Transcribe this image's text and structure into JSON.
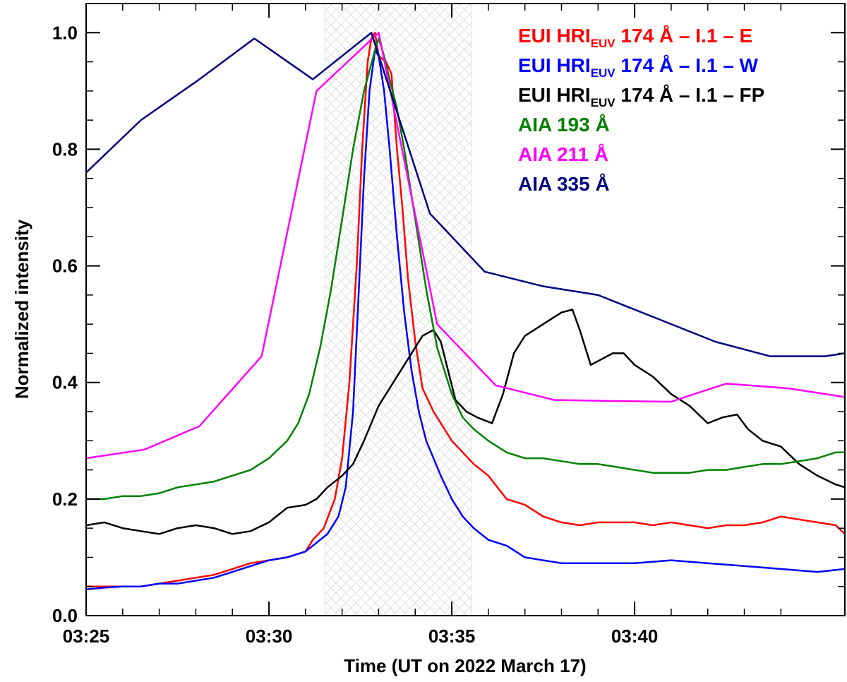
{
  "chart_data": {
    "type": "line",
    "title": "",
    "xlabel": "Time (UT on 2022 March 17)",
    "ylabel": "Normalized intensity",
    "x_unit": "minutes after 03:25 UT",
    "xlim": [
      0,
      20.75
    ],
    "ylim": [
      0,
      1.05
    ],
    "x_ticks": [
      {
        "value": 0,
        "label": "03:25"
      },
      {
        "value": 5,
        "label": "03:30"
      },
      {
        "value": 10,
        "label": "03:35"
      },
      {
        "value": 15,
        "label": "03:40"
      }
    ],
    "y_ticks": [
      {
        "value": 0,
        "label": "0.0"
      },
      {
        "value": 0.2,
        "label": "0.2"
      },
      {
        "value": 0.4,
        "label": "0.4"
      },
      {
        "value": 0.6,
        "label": "0.6"
      },
      {
        "value": 0.8,
        "label": "0.8"
      },
      {
        "value": 1.0,
        "label": "1.0"
      }
    ],
    "shaded_interval": {
      "x0": 6.53,
      "x1": 10.55
    },
    "legend_position": "top-right",
    "series": [
      {
        "name": "EUI HRI_EUV 174 Å – I.1 – E",
        "legend_parts": [
          "EUI HRI",
          "EUV",
          " 174 Å – I.1 – E"
        ],
        "color": "#ff0000",
        "points": [
          [
            0,
            0.05
          ],
          [
            0.5,
            0.05
          ],
          [
            1,
            0.05
          ],
          [
            1.5,
            0.05
          ],
          [
            2,
            0.055
          ],
          [
            2.5,
            0.06
          ],
          [
            3,
            0.065
          ],
          [
            3.5,
            0.07
          ],
          [
            4,
            0.08
          ],
          [
            4.5,
            0.09
          ],
          [
            5,
            0.095
          ],
          [
            5.5,
            0.1
          ],
          [
            6,
            0.11
          ],
          [
            6.2,
            0.13
          ],
          [
            6.5,
            0.15
          ],
          [
            6.8,
            0.2
          ],
          [
            7,
            0.27
          ],
          [
            7.2,
            0.4
          ],
          [
            7.4,
            0.6
          ],
          [
            7.55,
            0.8
          ],
          [
            7.7,
            0.95
          ],
          [
            7.8,
            0.99
          ],
          [
            7.9,
            1.0
          ],
          [
            8.0,
            0.96
          ],
          [
            8.2,
            0.95
          ],
          [
            8.35,
            0.93
          ],
          [
            8.5,
            0.8
          ],
          [
            8.65,
            0.7
          ],
          [
            8.8,
            0.58
          ],
          [
            9,
            0.47
          ],
          [
            9.2,
            0.39
          ],
          [
            9.5,
            0.35
          ],
          [
            9.8,
            0.32
          ],
          [
            10,
            0.3
          ],
          [
            10.3,
            0.28
          ],
          [
            10.6,
            0.26
          ],
          [
            11,
            0.24
          ],
          [
            11.5,
            0.2
          ],
          [
            12,
            0.19
          ],
          [
            12.5,
            0.17
          ],
          [
            13,
            0.16
          ],
          [
            13.5,
            0.155
          ],
          [
            14,
            0.16
          ],
          [
            14.5,
            0.16
          ],
          [
            15,
            0.16
          ],
          [
            15.5,
            0.155
          ],
          [
            16,
            0.16
          ],
          [
            16.5,
            0.155
          ],
          [
            17,
            0.15
          ],
          [
            17.5,
            0.155
          ],
          [
            18,
            0.155
          ],
          [
            18.5,
            0.16
          ],
          [
            19,
            0.17
          ],
          [
            19.5,
            0.165
          ],
          [
            20,
            0.16
          ],
          [
            20.5,
            0.155
          ],
          [
            20.75,
            0.14
          ]
        ]
      },
      {
        "name": "EUI HRI_EUV 174 Å – I.1 – W",
        "legend_parts": [
          "EUI HRI",
          "EUV",
          " 174 Å – I.1 – W"
        ],
        "color": "#0000ff",
        "points": [
          [
            0,
            0.045
          ],
          [
            0.5,
            0.048
          ],
          [
            1,
            0.05
          ],
          [
            1.5,
            0.05
          ],
          [
            2,
            0.055
          ],
          [
            2.5,
            0.055
          ],
          [
            3,
            0.06
          ],
          [
            3.5,
            0.065
          ],
          [
            4,
            0.075
          ],
          [
            4.5,
            0.085
          ],
          [
            5,
            0.095
          ],
          [
            5.5,
            0.1
          ],
          [
            6,
            0.11
          ],
          [
            6.3,
            0.125
          ],
          [
            6.6,
            0.14
          ],
          [
            6.9,
            0.17
          ],
          [
            7.1,
            0.22
          ],
          [
            7.3,
            0.35
          ],
          [
            7.45,
            0.55
          ],
          [
            7.6,
            0.75
          ],
          [
            7.75,
            0.9
          ],
          [
            7.9,
            0.97
          ],
          [
            8.0,
            0.96
          ],
          [
            8.15,
            0.9
          ],
          [
            8.3,
            0.8
          ],
          [
            8.5,
            0.65
          ],
          [
            8.7,
            0.52
          ],
          [
            8.9,
            0.42
          ],
          [
            9.1,
            0.35
          ],
          [
            9.3,
            0.3
          ],
          [
            9.5,
            0.27
          ],
          [
            9.7,
            0.24
          ],
          [
            10,
            0.2
          ],
          [
            10.3,
            0.17
          ],
          [
            10.6,
            0.15
          ],
          [
            11,
            0.13
          ],
          [
            11.5,
            0.12
          ],
          [
            12,
            0.1
          ],
          [
            12.5,
            0.095
          ],
          [
            13,
            0.09
          ],
          [
            14,
            0.09
          ],
          [
            15,
            0.09
          ],
          [
            16,
            0.095
          ],
          [
            17,
            0.09
          ],
          [
            18,
            0.085
          ],
          [
            19,
            0.08
          ],
          [
            20,
            0.075
          ],
          [
            20.75,
            0.08
          ]
        ]
      },
      {
        "name": "EUI HRI_EUV 174 Å – I.1 – FP",
        "legend_parts": [
          "EUI HRI",
          "EUV",
          " 174 Å – I.1 – FP"
        ],
        "color": "#000000",
        "points": [
          [
            0,
            0.155
          ],
          [
            0.5,
            0.16
          ],
          [
            1,
            0.15
          ],
          [
            1.5,
            0.145
          ],
          [
            2,
            0.14
          ],
          [
            2.5,
            0.15
          ],
          [
            3,
            0.155
          ],
          [
            3.5,
            0.15
          ],
          [
            4,
            0.14
          ],
          [
            4.5,
            0.145
          ],
          [
            5,
            0.16
          ],
          [
            5.5,
            0.185
          ],
          [
            6,
            0.19
          ],
          [
            6.3,
            0.2
          ],
          [
            6.6,
            0.22
          ],
          [
            7,
            0.24
          ],
          [
            7.3,
            0.26
          ],
          [
            7.6,
            0.3
          ],
          [
            8,
            0.36
          ],
          [
            8.4,
            0.4
          ],
          [
            8.8,
            0.44
          ],
          [
            9.2,
            0.48
          ],
          [
            9.5,
            0.49
          ],
          [
            9.7,
            0.47
          ],
          [
            9.9,
            0.42
          ],
          [
            10.1,
            0.37
          ],
          [
            10.4,
            0.35
          ],
          [
            10.7,
            0.34
          ],
          [
            11.1,
            0.33
          ],
          [
            11.4,
            0.38
          ],
          [
            11.7,
            0.45
          ],
          [
            12,
            0.48
          ],
          [
            12.5,
            0.5
          ],
          [
            13,
            0.52
          ],
          [
            13.3,
            0.525
          ],
          [
            13.5,
            0.49
          ],
          [
            13.8,
            0.43
          ],
          [
            14.1,
            0.44
          ],
          [
            14.4,
            0.45
          ],
          [
            14.7,
            0.45
          ],
          [
            15,
            0.43
          ],
          [
            15.5,
            0.41
          ],
          [
            16,
            0.38
          ],
          [
            16.5,
            0.36
          ],
          [
            17,
            0.33
          ],
          [
            17.4,
            0.34
          ],
          [
            17.8,
            0.345
          ],
          [
            18.1,
            0.32
          ],
          [
            18.5,
            0.3
          ],
          [
            19,
            0.29
          ],
          [
            19.5,
            0.26
          ],
          [
            20,
            0.24
          ],
          [
            20.5,
            0.225
          ],
          [
            20.75,
            0.22
          ]
        ]
      },
      {
        "name": "AIA 193 Å",
        "legend_parts": [
          "AIA 193 Å"
        ],
        "color": "#008000",
        "points": [
          [
            0,
            0.2
          ],
          [
            0.5,
            0.2
          ],
          [
            1,
            0.205
          ],
          [
            1.5,
            0.205
          ],
          [
            2,
            0.21
          ],
          [
            2.5,
            0.22
          ],
          [
            3,
            0.225
          ],
          [
            3.5,
            0.23
          ],
          [
            4,
            0.24
          ],
          [
            4.5,
            0.25
          ],
          [
            5,
            0.27
          ],
          [
            5.5,
            0.3
          ],
          [
            5.8,
            0.33
          ],
          [
            6.1,
            0.38
          ],
          [
            6.4,
            0.46
          ],
          [
            6.7,
            0.56
          ],
          [
            7,
            0.68
          ],
          [
            7.3,
            0.8
          ],
          [
            7.6,
            0.9
          ],
          [
            7.9,
            0.97
          ],
          [
            8.0,
            0.99
          ],
          [
            8.15,
            0.96
          ],
          [
            8.3,
            0.92
          ],
          [
            8.5,
            0.87
          ],
          [
            8.7,
            0.8
          ],
          [
            9,
            0.68
          ],
          [
            9.3,
            0.56
          ],
          [
            9.6,
            0.46
          ],
          [
            10,
            0.38
          ],
          [
            10.3,
            0.34
          ],
          [
            10.6,
            0.32
          ],
          [
            11,
            0.3
          ],
          [
            11.5,
            0.28
          ],
          [
            12,
            0.27
          ],
          [
            12.5,
            0.27
          ],
          [
            13,
            0.265
          ],
          [
            13.5,
            0.26
          ],
          [
            14,
            0.26
          ],
          [
            14.5,
            0.255
          ],
          [
            15,
            0.25
          ],
          [
            15.5,
            0.245
          ],
          [
            16,
            0.245
          ],
          [
            16.5,
            0.245
          ],
          [
            17,
            0.25
          ],
          [
            17.5,
            0.25
          ],
          [
            18,
            0.255
          ],
          [
            18.5,
            0.26
          ],
          [
            19,
            0.26
          ],
          [
            19.5,
            0.265
          ],
          [
            20,
            0.27
          ],
          [
            20.5,
            0.28
          ],
          [
            20.75,
            0.28
          ]
        ]
      },
      {
        "name": "AIA 211 Å",
        "legend_parts": [
          "AIA 211 Å"
        ],
        "color": "#ff00ff",
        "points": [
          [
            0,
            0.27
          ],
          [
            1.6,
            0.285
          ],
          [
            3.1,
            0.325
          ],
          [
            4.8,
            0.445
          ],
          [
            6.3,
            0.9
          ],
          [
            8.0,
            1.0
          ],
          [
            9.6,
            0.5
          ],
          [
            11.2,
            0.395
          ],
          [
            12.8,
            0.37
          ],
          [
            14.5,
            0.368
          ],
          [
            16.0,
            0.367
          ],
          [
            17.5,
            0.398
          ],
          [
            19.2,
            0.39
          ],
          [
            20.75,
            0.375
          ]
        ]
      },
      {
        "name": "AIA 335 Å",
        "legend_parts": [
          "AIA 335 Å"
        ],
        "color": "#000080",
        "points": [
          [
            0,
            0.76
          ],
          [
            1.5,
            0.85
          ],
          [
            3.1,
            0.92
          ],
          [
            4.6,
            0.99
          ],
          [
            6.2,
            0.92
          ],
          [
            7.8,
            1.0
          ],
          [
            9.4,
            0.69
          ],
          [
            10.9,
            0.59
          ],
          [
            12.5,
            0.565
          ],
          [
            14.0,
            0.55
          ],
          [
            15.6,
            0.51
          ],
          [
            17.2,
            0.47
          ],
          [
            18.7,
            0.445
          ],
          [
            20.2,
            0.445
          ],
          [
            20.75,
            0.45
          ]
        ]
      }
    ]
  }
}
